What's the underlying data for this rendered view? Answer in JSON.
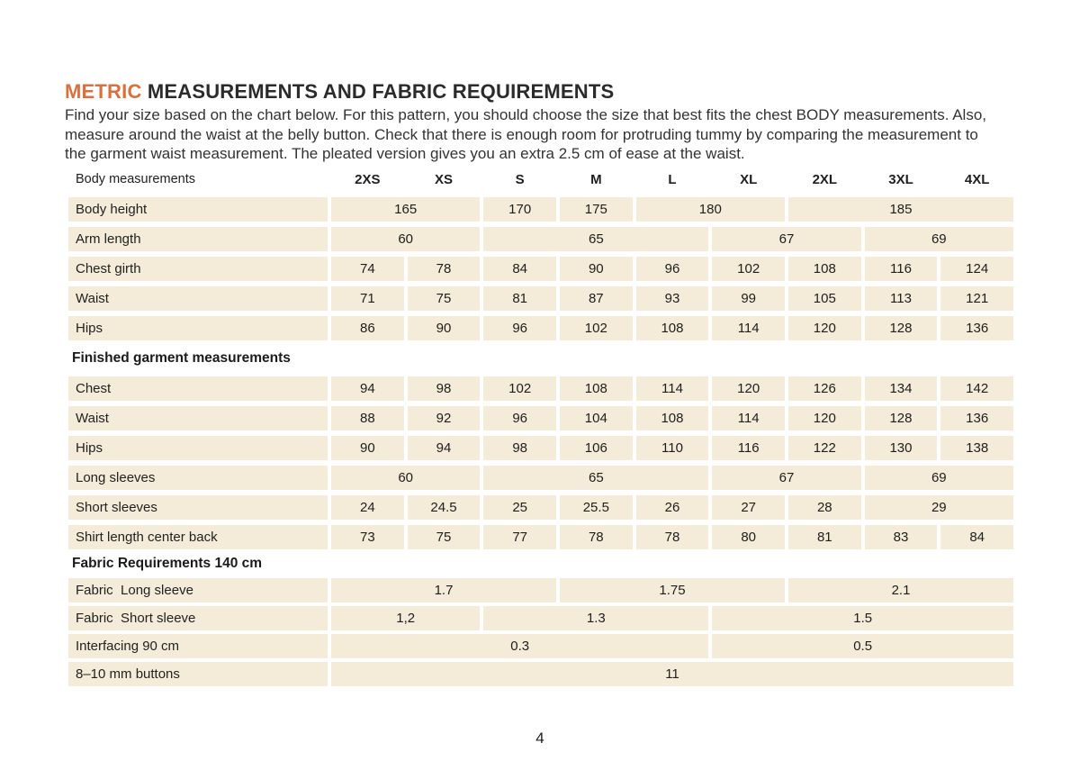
{
  "page": {
    "title_highlight": "METRIC",
    "title_rest": " MEASUREMENTS AND FABRIC REQUIREMENTS",
    "intro": "Find your size based on the chart below. For this pattern, you should choose the size that best fits the chest BODY measurements. Also, measure around the waist at the belly button. Check that there is enough room for protruding tummy by comparing the measurement to the garment waist measurement. The pleated version gives you an extra 2.5 cm of ease at the waist.",
    "page_number": "4"
  },
  "colors": {
    "accent_orange": "#d9713d",
    "cell_beige": "#f4ecd9",
    "text_dark": "#262626"
  },
  "table": {
    "size_header": {
      "label": "Body measurements",
      "sizes": [
        "2XS",
        "XS",
        "S",
        "M",
        "L",
        "XL",
        "2XL",
        "3XL",
        "4XL"
      ]
    },
    "sections": [
      {
        "heading": null,
        "tight": false,
        "rows": [
          {
            "label": "Body height",
            "cells": [
              {
                "value": "165",
                "span": 2
              },
              {
                "value": "170",
                "span": 1
              },
              {
                "value": "175",
                "span": 1
              },
              {
                "value": "180",
                "span": 2
              },
              {
                "value": "185",
                "span": 3
              }
            ]
          },
          {
            "label": "Arm length",
            "cells": [
              {
                "value": "60",
                "span": 2
              },
              {
                "value": "65",
                "span": 3
              },
              {
                "value": "67",
                "span": 2
              },
              {
                "value": "69",
                "span": 2
              }
            ]
          },
          {
            "label": "Chest girth",
            "cells": [
              {
                "value": "74",
                "span": 1
              },
              {
                "value": "78",
                "span": 1
              },
              {
                "value": "84",
                "span": 1
              },
              {
                "value": "90",
                "span": 1
              },
              {
                "value": "96",
                "span": 1
              },
              {
                "value": "102",
                "span": 1
              },
              {
                "value": "108",
                "span": 1
              },
              {
                "value": "116",
                "span": 1
              },
              {
                "value": "124",
                "span": 1
              }
            ]
          },
          {
            "label": "Waist",
            "cells": [
              {
                "value": "71",
                "span": 1
              },
              {
                "value": "75",
                "span": 1
              },
              {
                "value": "81",
                "span": 1
              },
              {
                "value": "87",
                "span": 1
              },
              {
                "value": "93",
                "span": 1
              },
              {
                "value": "99",
                "span": 1
              },
              {
                "value": "105",
                "span": 1
              },
              {
                "value": "113",
                "span": 1
              },
              {
                "value": "121",
                "span": 1
              }
            ]
          },
          {
            "label": "Hips",
            "cells": [
              {
                "value": "86",
                "span": 1
              },
              {
                "value": "90",
                "span": 1
              },
              {
                "value": "96",
                "span": 1
              },
              {
                "value": "102",
                "span": 1
              },
              {
                "value": "108",
                "span": 1
              },
              {
                "value": "114",
                "span": 1
              },
              {
                "value": "120",
                "span": 1
              },
              {
                "value": "128",
                "span": 1
              },
              {
                "value": "136",
                "span": 1
              }
            ]
          }
        ]
      },
      {
        "heading": "Finished garment measurements",
        "tight": false,
        "rows": [
          {
            "label": "Chest",
            "cells": [
              {
                "value": "94",
                "span": 1
              },
              {
                "value": "98",
                "span": 1
              },
              {
                "value": "102",
                "span": 1
              },
              {
                "value": "108",
                "span": 1
              },
              {
                "value": "114",
                "span": 1
              },
              {
                "value": "120",
                "span": 1
              },
              {
                "value": "126",
                "span": 1
              },
              {
                "value": "134",
                "span": 1
              },
              {
                "value": "142",
                "span": 1
              }
            ]
          },
          {
            "label": "Waist",
            "cells": [
              {
                "value": "88",
                "span": 1
              },
              {
                "value": "92",
                "span": 1
              },
              {
                "value": "96",
                "span": 1
              },
              {
                "value": "104",
                "span": 1
              },
              {
                "value": "108",
                "span": 1
              },
              {
                "value": "114",
                "span": 1
              },
              {
                "value": "120",
                "span": 1
              },
              {
                "value": "128",
                "span": 1
              },
              {
                "value": "136",
                "span": 1
              }
            ]
          },
          {
            "label": "Hips",
            "cells": [
              {
                "value": "90",
                "span": 1
              },
              {
                "value": "94",
                "span": 1
              },
              {
                "value": "98",
                "span": 1
              },
              {
                "value": "106",
                "span": 1
              },
              {
                "value": "110",
                "span": 1
              },
              {
                "value": "116",
                "span": 1
              },
              {
                "value": "122",
                "span": 1
              },
              {
                "value": "130",
                "span": 1
              },
              {
                "value": "138",
                "span": 1
              }
            ]
          },
          {
            "label": "Long sleeves",
            "cells": [
              {
                "value": "60",
                "span": 2
              },
              {
                "value": "65",
                "span": 3
              },
              {
                "value": "67",
                "span": 2
              },
              {
                "value": "69",
                "span": 2
              }
            ]
          },
          {
            "label": "Short sleeves",
            "cells": [
              {
                "value": "24",
                "span": 1
              },
              {
                "value": "24.5",
                "span": 1
              },
              {
                "value": "25",
                "span": 1
              },
              {
                "value": "25.5",
                "span": 1
              },
              {
                "value": "26",
                "span": 1
              },
              {
                "value": "27",
                "span": 1
              },
              {
                "value": "28",
                "span": 1
              },
              {
                "value": "29",
                "span": 2
              }
            ]
          },
          {
            "label": "Shirt length center back",
            "cells": [
              {
                "value": "73",
                "span": 1
              },
              {
                "value": "75",
                "span": 1
              },
              {
                "value": "77",
                "span": 1
              },
              {
                "value": "78",
                "span": 1
              },
              {
                "value": "78",
                "span": 1
              },
              {
                "value": "80",
                "span": 1
              },
              {
                "value": "81",
                "span": 1
              },
              {
                "value": "83",
                "span": 1
              },
              {
                "value": "84",
                "span": 1
              }
            ]
          }
        ]
      },
      {
        "heading": "Fabric Requirements 140 cm",
        "tight": true,
        "rows": [
          {
            "label": "Fabric  Long sleeve",
            "cells": [
              {
                "value": "1.7",
                "span": 3
              },
              {
                "value": "1.75",
                "span": 3
              },
              {
                "value": "2.1",
                "span": 3
              }
            ]
          },
          {
            "label": "Fabric  Short sleeve",
            "cells": [
              {
                "value": "1,2",
                "span": 2
              },
              {
                "value": "1.3",
                "span": 3
              },
              {
                "value": "1.5",
                "span": 4
              }
            ]
          },
          {
            "label": "Interfacing 90 cm",
            "cells": [
              {
                "value": "0.3",
                "span": 5
              },
              {
                "value": "0.5",
                "span": 4
              }
            ]
          },
          {
            "label": "8–10 mm buttons",
            "cells": [
              {
                "value": "11",
                "span": 9
              }
            ]
          }
        ]
      }
    ]
  }
}
